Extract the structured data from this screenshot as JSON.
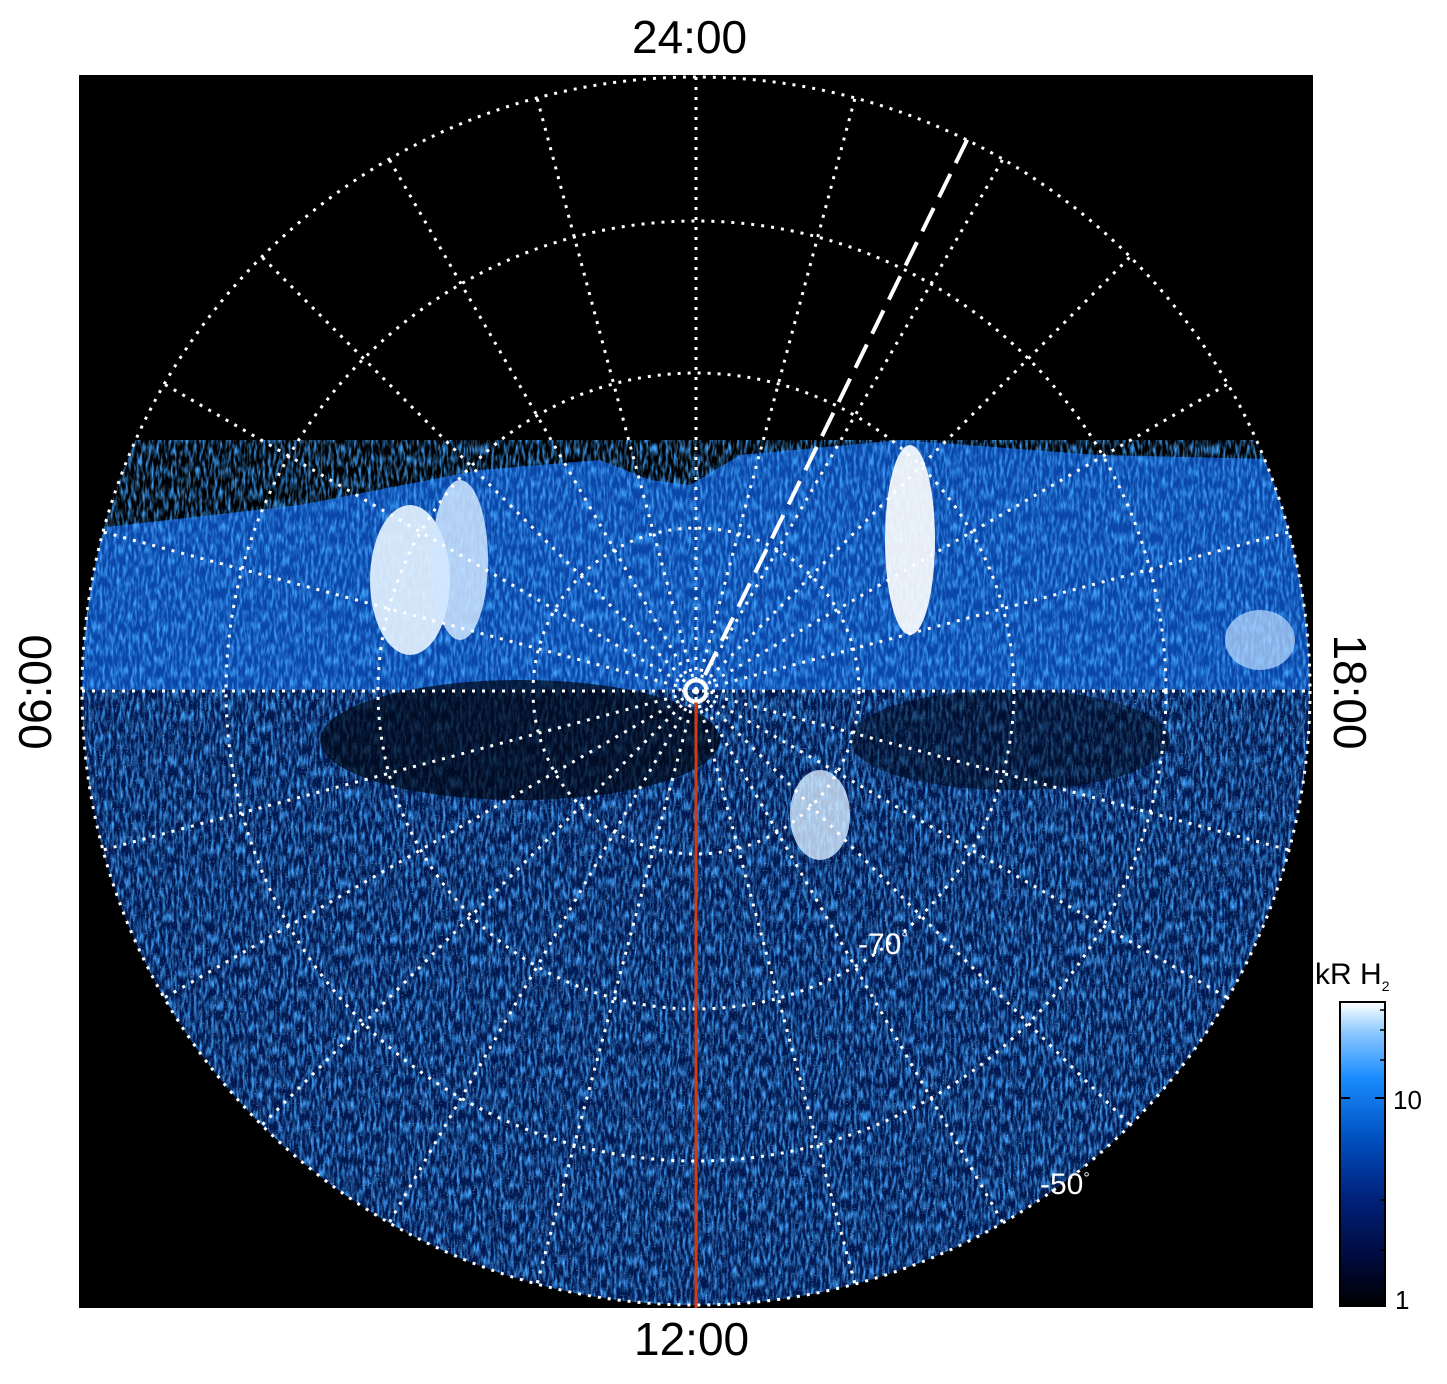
{
  "figure": {
    "time_labels": {
      "top": "24:00",
      "bottom": "12:00",
      "left": "06:00",
      "right": "18:00"
    },
    "latitude_labels": {
      "lat70": "-70",
      "lat50": "-50",
      "degree_symbol": "°"
    },
    "colorbar": {
      "unit": "kR",
      "species": "H",
      "species_subscript": "2",
      "tick_labels": [
        "1",
        "10"
      ],
      "scale": "log",
      "colors": [
        "#000000",
        "#000a3a",
        "#00207a",
        "#0050c0",
        "#1a8cff",
        "#8cc8ff",
        "#ffffff"
      ]
    },
    "colors": {
      "background": "#000000",
      "grid": "#ffffff",
      "noon_meridian": "#d23c14",
      "aurora": "#1a8cff"
    }
  }
}
